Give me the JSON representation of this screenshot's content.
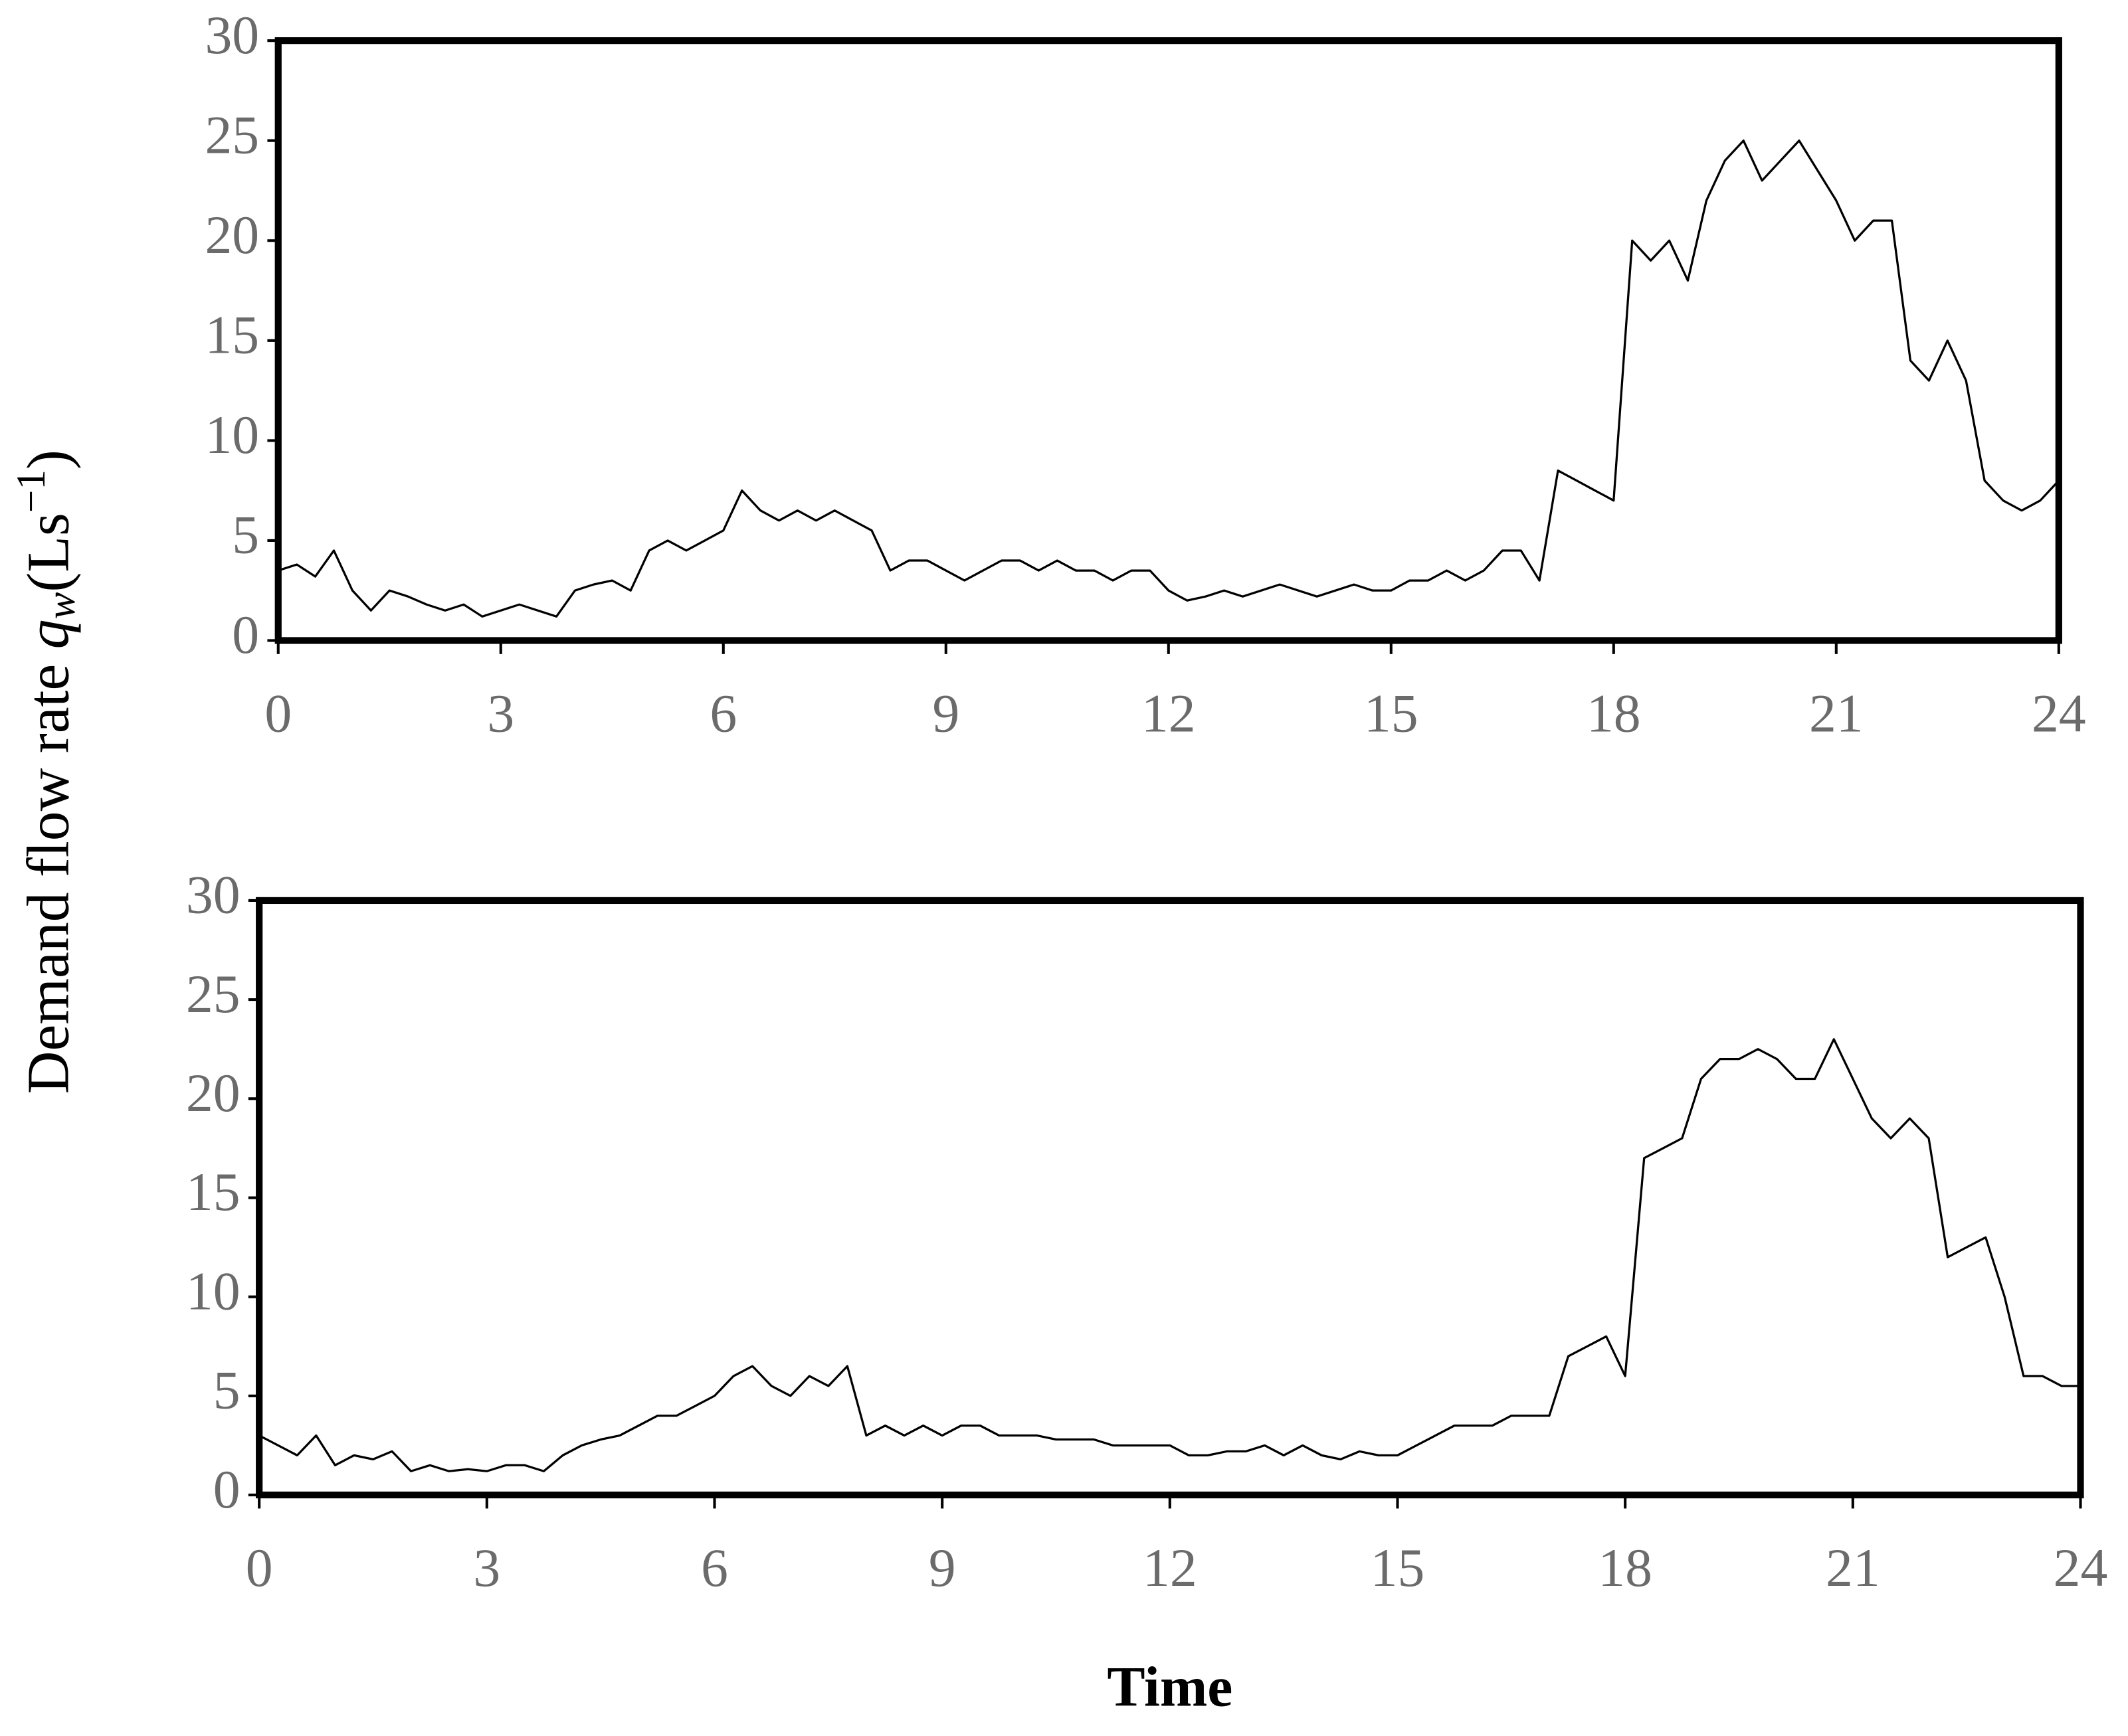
{
  "y_label": {
    "text": "Demand flow rate ",
    "var": "q",
    "sub": "w",
    "unit": "(Ls",
    "sup": "−1",
    "close": ")"
  },
  "x_label": "Time",
  "chart_data": [
    {
      "type": "line",
      "color": "#000000",
      "x": [
        0,
        0.25,
        0.5,
        0.75,
        1,
        1.25,
        1.5,
        1.75,
        2,
        2.25,
        2.5,
        2.75,
        3,
        3.25,
        3.5,
        3.75,
        4,
        4.25,
        4.5,
        4.75,
        5,
        5.25,
        5.5,
        5.75,
        6,
        6.25,
        6.5,
        6.75,
        7,
        7.25,
        7.5,
        7.75,
        8,
        8.25,
        8.5,
        8.75,
        9,
        9.25,
        9.5,
        9.75,
        10,
        10.25,
        10.5,
        10.75,
        11,
        11.25,
        11.5,
        11.75,
        12,
        12.25,
        12.5,
        12.75,
        13,
        13.25,
        13.5,
        13.75,
        14,
        14.25,
        14.5,
        14.75,
        15,
        15.25,
        15.5,
        15.75,
        16,
        16.25,
        16.5,
        16.75,
        17,
        17.25,
        17.5,
        17.75,
        18,
        18.25,
        18.5,
        18.75,
        19,
        19.25,
        19.5,
        19.75,
        20,
        20.25,
        20.5,
        20.75,
        21,
        21.25,
        21.5,
        21.75,
        22,
        22.25,
        22.5,
        22.75,
        23,
        23.25,
        23.5,
        23.75,
        24
      ],
      "values": [
        3.5,
        3.8,
        3.2,
        4.5,
        2.5,
        1.5,
        2.5,
        2.2,
        1.8,
        1.5,
        1.8,
        1.2,
        1.5,
        1.8,
        1.5,
        1.2,
        2.5,
        2.8,
        3.0,
        2.5,
        4.5,
        5.0,
        4.5,
        5.0,
        5.5,
        7.5,
        6.5,
        6.0,
        6.5,
        6.0,
        6.5,
        6.0,
        5.5,
        3.5,
        4.0,
        4.0,
        3.5,
        3.0,
        3.5,
        4.0,
        4.0,
        3.5,
        4.0,
        3.5,
        3.5,
        3.0,
        3.5,
        3.5,
        2.5,
        2.0,
        2.2,
        2.5,
        2.2,
        2.5,
        2.8,
        2.5,
        2.2,
        2.5,
        2.8,
        2.5,
        2.5,
        3.0,
        3.0,
        3.5,
        3.0,
        3.5,
        4.5,
        4.5,
        3.0,
        8.5,
        8.0,
        7.5,
        7.0,
        20,
        19,
        20,
        18,
        22,
        24,
        25,
        23,
        24,
        25,
        23.5,
        22,
        20,
        21,
        21,
        14,
        13,
        15,
        13,
        8,
        7,
        6.5,
        7,
        8
      ],
      "xlim": [
        0,
        24
      ],
      "xticks": [
        0,
        3,
        6,
        9,
        12,
        15,
        18,
        21,
        24
      ],
      "ylim": [
        0,
        30
      ],
      "yticks": [
        0,
        5,
        10,
        15,
        20,
        25,
        30
      ]
    },
    {
      "type": "line",
      "color": "#000000",
      "x": [
        0,
        0.25,
        0.5,
        0.75,
        1,
        1.25,
        1.5,
        1.75,
        2,
        2.25,
        2.5,
        2.75,
        3,
        3.25,
        3.5,
        3.75,
        4,
        4.25,
        4.5,
        4.75,
        5,
        5.25,
        5.5,
        5.75,
        6,
        6.25,
        6.5,
        6.75,
        7,
        7.25,
        7.5,
        7.75,
        8,
        8.25,
        8.5,
        8.75,
        9,
        9.25,
        9.5,
        9.75,
        10,
        10.25,
        10.5,
        10.75,
        11,
        11.25,
        11.5,
        11.75,
        12,
        12.25,
        12.5,
        12.75,
        13,
        13.25,
        13.5,
        13.75,
        14,
        14.25,
        14.5,
        14.75,
        15,
        15.25,
        15.5,
        15.75,
        16,
        16.25,
        16.5,
        16.75,
        17,
        17.25,
        17.5,
        17.75,
        18,
        18.25,
        18.5,
        18.75,
        19,
        19.25,
        19.5,
        19.75,
        20,
        20.25,
        20.5,
        20.75,
        21,
        21.25,
        21.5,
        21.75,
        22,
        22.25,
        22.5,
        22.75,
        23,
        23.25,
        23.5,
        23.75,
        24
      ],
      "values": [
        3,
        2.5,
        2,
        3,
        1.5,
        2,
        1.8,
        2.2,
        1.2,
        1.5,
        1.2,
        1.3,
        1.2,
        1.5,
        1.5,
        1.2,
        2,
        2.5,
        2.8,
        3,
        3.5,
        4,
        4,
        4.5,
        5,
        6,
        6.5,
        5.5,
        5,
        6,
        5.5,
        6.5,
        3,
        3.5,
        3,
        3.5,
        3,
        3.5,
        3.5,
        3,
        3,
        3,
        2.8,
        2.8,
        2.8,
        2.5,
        2.5,
        2.5,
        2.5,
        2,
        2,
        2.2,
        2.2,
        2.5,
        2,
        2.5,
        2,
        1.8,
        2.2,
        2,
        2,
        2.5,
        3,
        3.5,
        3.5,
        3.5,
        4,
        4,
        4,
        7,
        7.5,
        8,
        6,
        17,
        17.5,
        18,
        21,
        22,
        22,
        22.5,
        22,
        21,
        21,
        23,
        21,
        19,
        18,
        19,
        18,
        12,
        12.5,
        13,
        10,
        6,
        6,
        5.5,
        5.5
      ],
      "xlim": [
        0,
        24
      ],
      "xticks": [
        0,
        3,
        6,
        9,
        12,
        15,
        18,
        21,
        24
      ],
      "ylim": [
        0,
        30
      ],
      "yticks": [
        0,
        5,
        10,
        15,
        20,
        25,
        30
      ]
    }
  ]
}
